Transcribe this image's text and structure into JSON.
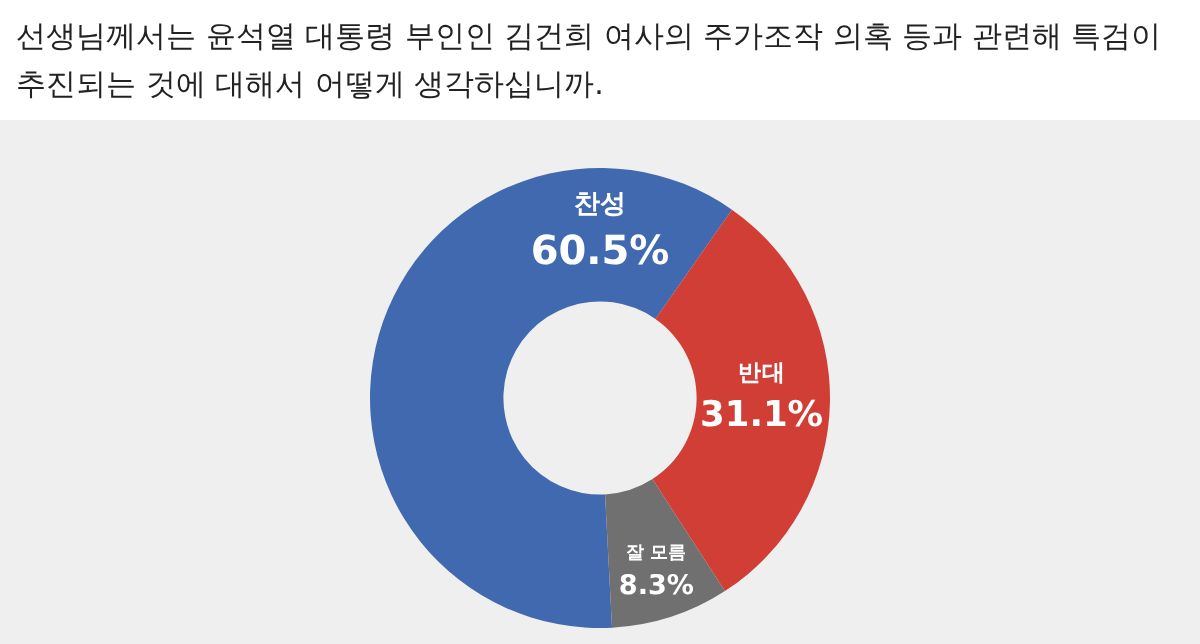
{
  "chart_data": {
    "type": "donut",
    "title": "선생님께서는 윤석열 대통령 부인인 김건희 여사의 주가조작 의혹 등과 관련해 특검이 추진되는 것에 대해서 어떻게 생각하십니까.",
    "categories": [
      "찬성",
      "반대",
      "잘 모름"
    ],
    "values": [
      60.5,
      31.1,
      8.3
    ],
    "value_labels": [
      "60.5%",
      "31.1%",
      "8.3%"
    ],
    "colors": [
      "#4169b0",
      "#d03e36",
      "#707070"
    ],
    "legend": false
  }
}
